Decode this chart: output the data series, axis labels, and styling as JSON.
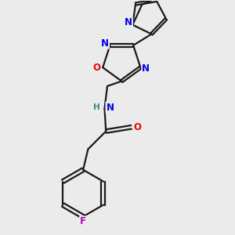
{
  "bg_color": "#ebebeb",
  "bond_color": "#1a1a1a",
  "bond_width": 1.6,
  "atom_colors": {
    "N": "#0000ee",
    "O": "#ee0000",
    "F": "#bb00bb",
    "H": "#338888",
    "C": "#1a1a1a"
  },
  "font_size": 8.5
}
